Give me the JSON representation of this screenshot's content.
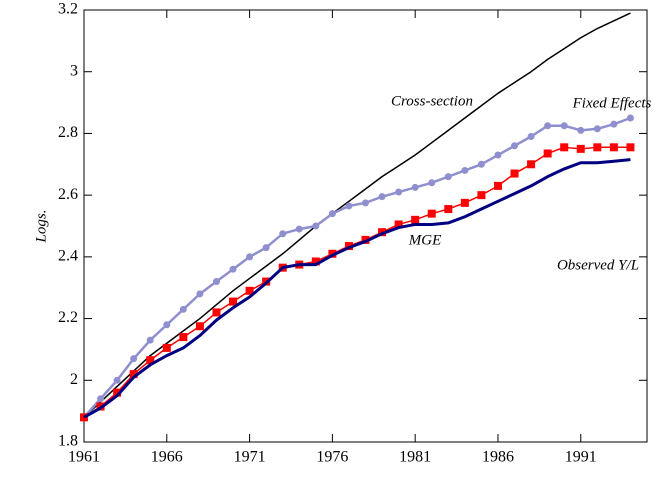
{
  "chart_data": {
    "type": "line",
    "y_label": "Logs.",
    "x": [
      1961,
      1962,
      1963,
      1964,
      1965,
      1966,
      1967,
      1968,
      1969,
      1970,
      1971,
      1972,
      1973,
      1974,
      1975,
      1976,
      1977,
      1978,
      1979,
      1980,
      1981,
      1982,
      1983,
      1984,
      1985,
      1986,
      1987,
      1988,
      1989,
      1990,
      1991,
      1992,
      1993,
      1994
    ],
    "xlim": [
      1961,
      1995
    ],
    "xticks": [
      1961,
      1966,
      1971,
      1976,
      1981,
      1986,
      1991
    ],
    "ylim": [
      1.8,
      3.2
    ],
    "yticks": [
      1.8,
      2,
      2.2,
      2.4,
      2.6,
      2.8,
      3,
      3.2
    ],
    "grid": false,
    "series": [
      {
        "name": "Cross-section",
        "color": "#000000",
        "marker": "none",
        "values": [
          1.88,
          1.93,
          1.98,
          2.03,
          2.08,
          2.12,
          2.16,
          2.2,
          2.245,
          2.29,
          2.33,
          2.37,
          2.41,
          2.455,
          2.5,
          2.54,
          2.58,
          2.62,
          2.66,
          2.695,
          2.73,
          2.77,
          2.81,
          2.85,
          2.89,
          2.93,
          2.965,
          3.0,
          3.04,
          3.075,
          3.11,
          3.14,
          3.165,
          3.19
        ]
      },
      {
        "name": "Fixed Effects",
        "color": "#8f8fcf",
        "marker": "circle",
        "values": [
          1.88,
          1.94,
          2.0,
          2.07,
          2.13,
          2.18,
          2.23,
          2.28,
          2.32,
          2.36,
          2.4,
          2.43,
          2.475,
          2.49,
          2.5,
          2.54,
          2.565,
          2.575,
          2.595,
          2.61,
          2.625,
          2.64,
          2.66,
          2.68,
          2.7,
          2.73,
          2.76,
          2.79,
          2.825,
          2.825,
          2.81,
          2.815,
          2.83,
          2.85
        ]
      },
      {
        "name": "MGE",
        "color": "#ff0000",
        "marker": "square",
        "values": [
          1.88,
          1.915,
          1.96,
          2.02,
          2.065,
          2.105,
          2.14,
          2.175,
          2.22,
          2.255,
          2.29,
          2.32,
          2.365,
          2.375,
          2.385,
          2.41,
          2.435,
          2.455,
          2.48,
          2.505,
          2.52,
          2.54,
          2.555,
          2.575,
          2.6,
          2.63,
          2.67,
          2.7,
          2.735,
          2.755,
          2.75,
          2.755,
          2.755,
          2.755
        ]
      },
      {
        "name": "Observed Y/L",
        "color": "#000080",
        "marker": "none",
        "values": [
          1.88,
          1.91,
          1.95,
          2.01,
          2.05,
          2.08,
          2.105,
          2.145,
          2.195,
          2.235,
          2.27,
          2.315,
          2.365,
          2.375,
          2.375,
          2.405,
          2.43,
          2.45,
          2.475,
          2.495,
          2.505,
          2.505,
          2.51,
          2.53,
          2.555,
          2.58,
          2.605,
          2.63,
          2.66,
          2.685,
          2.705,
          2.705,
          2.71,
          2.715
        ]
      }
    ]
  }
}
